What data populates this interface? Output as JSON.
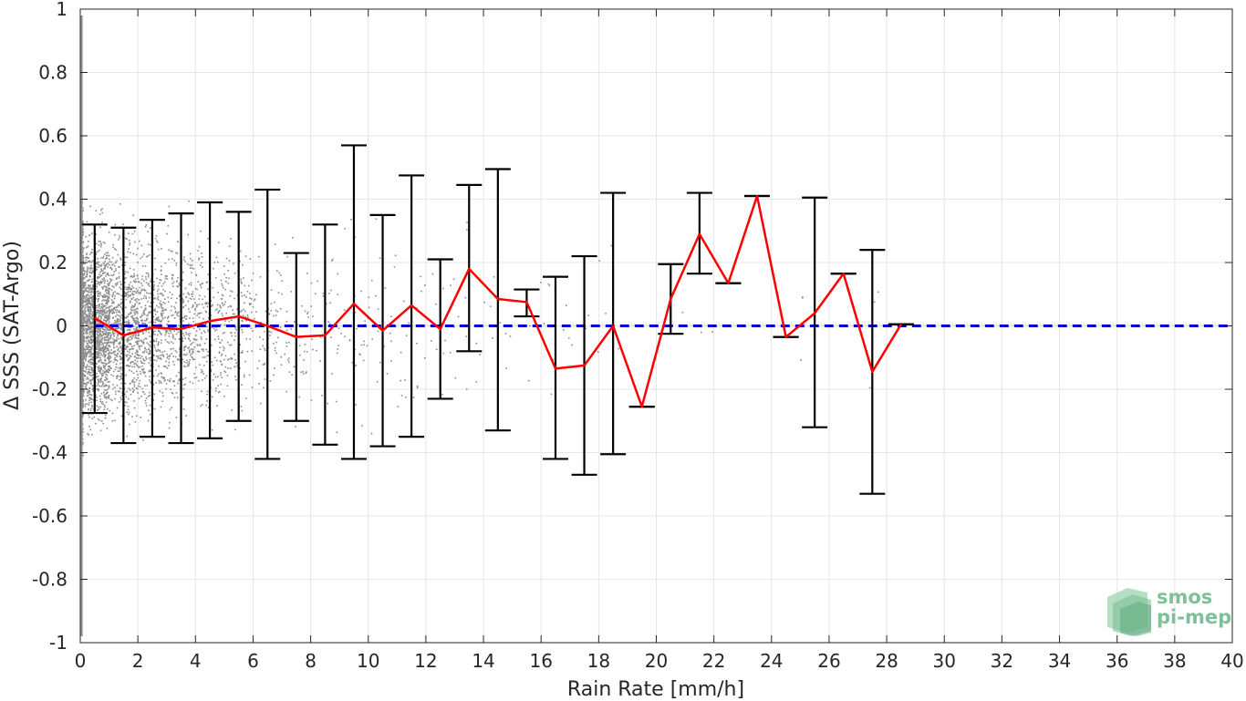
{
  "chart_data": {
    "type": "scatter",
    "title": "",
    "xlabel": "Rain Rate [mm/h]",
    "ylabel": "Δ SSS (SAT-Argo)",
    "xlim": [
      0,
      40
    ],
    "ylim": [
      -1,
      1
    ],
    "grid": true,
    "xticks": [
      0,
      2,
      4,
      6,
      8,
      10,
      12,
      14,
      16,
      18,
      20,
      22,
      24,
      26,
      28,
      30,
      32,
      34,
      36,
      38,
      40
    ],
    "xtick_labels": [
      "0",
      "2",
      "4",
      "6",
      "8",
      "10",
      "12",
      "14",
      "16",
      "18",
      "20",
      "22",
      "24",
      "26",
      "28",
      "30",
      "32",
      "34",
      "36",
      "38",
      "40"
    ],
    "yticks": [
      1,
      0.8,
      0.6,
      0.4,
      0.2,
      0,
      -0.2,
      -0.4,
      -0.6,
      -0.8,
      -1
    ],
    "ytick_labels": [
      "1",
      "0.8",
      "0.6",
      "0.4",
      "0.2",
      "0",
      "-0.2",
      "-0.4",
      "-0.6",
      "-0.8",
      "-1"
    ],
    "series": [
      {
        "type": "line",
        "color": "#ff0000",
        "x": [
          0.5,
          1.5,
          2.5,
          3.5,
          4.5,
          5.5,
          6.5,
          7.5,
          8.5,
          9.5,
          10.5,
          11.5,
          12.5,
          13.5,
          14.5,
          15.5,
          16.5,
          17.5,
          18.5,
          19.5,
          20.5,
          21.5,
          22.5,
          23.5,
          24.5,
          25.5,
          26.5,
          27.5,
          28.5
        ],
        "y": [
          0.025,
          -0.03,
          -0.005,
          -0.01,
          0.015,
          0.03,
          0.0,
          -0.035,
          -0.03,
          0.07,
          -0.015,
          0.065,
          -0.01,
          0.18,
          0.085,
          0.075,
          -0.135,
          -0.125,
          0.0,
          -0.255,
          0.085,
          0.29,
          0.135,
          0.41,
          -0.035,
          0.04,
          0.165,
          -0.145,
          0.005
        ]
      },
      {
        "type": "errorbar",
        "color": "#000000",
        "x": [
          0.5,
          1.5,
          2.5,
          3.5,
          4.5,
          5.5,
          6.5,
          7.5,
          8.5,
          9.5,
          10.5,
          11.5,
          12.5,
          13.5,
          14.5,
          15.5,
          16.5,
          17.5,
          18.5,
          19.5,
          20.5,
          21.5,
          22.5,
          23.5,
          24.5,
          25.5,
          26.5,
          27.5,
          28.5
        ],
        "upper": [
          0.32,
          0.31,
          0.335,
          0.355,
          0.39,
          0.36,
          0.43,
          0.23,
          0.32,
          0.57,
          0.35,
          0.475,
          0.21,
          0.445,
          0.495,
          0.115,
          0.155,
          0.22,
          0.42,
          -0.255,
          0.195,
          0.42,
          0.135,
          0.41,
          -0.035,
          0.405,
          0.165,
          0.24,
          0.005
        ],
        "lower": [
          -0.275,
          -0.37,
          -0.35,
          -0.37,
          -0.355,
          -0.3,
          -0.42,
          -0.3,
          -0.375,
          -0.42,
          -0.38,
          -0.35,
          -0.23,
          -0.08,
          -0.33,
          0.03,
          -0.42,
          -0.47,
          -0.405,
          -0.255,
          -0.025,
          0.165,
          0.135,
          0.41,
          -0.035,
          -0.32,
          0.165,
          -0.53,
          0.005
        ]
      },
      {
        "type": "reference-line",
        "color": "#0000cc",
        "style": "dashed",
        "y": 0
      },
      {
        "type": "scatter",
        "color": "#8c8c8c",
        "description": "dense individual matchup points, concentrated at low rain rates (0-6 mm/h) and thinning toward higher rates"
      }
    ]
  },
  "logo": {
    "line1": "smos",
    "line2": "pi-mep",
    "color": "#7fbf99"
  }
}
